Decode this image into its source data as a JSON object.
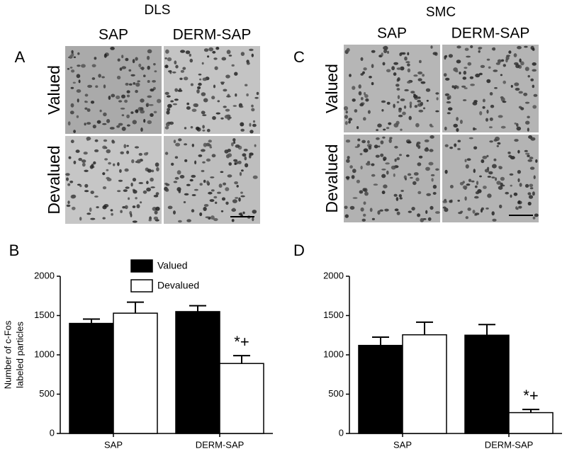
{
  "figure": {
    "panels": [
      {
        "letter": "A",
        "title": "DLS",
        "columns": [
          "SAP",
          "DERM-SAP"
        ],
        "rows": [
          "Valued",
          "Devalued"
        ]
      },
      {
        "letter": "C",
        "title": "SMC",
        "columns": [
          "SAP",
          "DERM-SAP"
        ],
        "rows": [
          "Valued",
          "Devalued"
        ]
      }
    ]
  },
  "chart_data": [
    {
      "type": "bar",
      "panel": "B",
      "categories": [
        "SAP",
        "DERM-SAP"
      ],
      "ylabel": [
        "Number of c-Fos",
        "labeled particles"
      ],
      "series": [
        {
          "name": "Valued",
          "color": "#000000",
          "values": [
            1400,
            1550
          ],
          "errors": [
            55,
            75
          ]
        },
        {
          "name": "Devalued",
          "color": "#ffffff",
          "values": [
            1530,
            890
          ],
          "errors": [
            140,
            100
          ]
        }
      ],
      "annotation": "*+",
      "legend": true,
      "ylim": [
        0,
        2000
      ],
      "yticks": [
        0,
        500,
        1000,
        1500,
        2000
      ]
    },
    {
      "type": "bar",
      "panel": "D",
      "categories": [
        "SAP",
        "DERM-SAP"
      ],
      "series": [
        {
          "color": "#000000",
          "values": [
            1120,
            1250
          ],
          "errors": [
            105,
            135
          ]
        },
        {
          "color": "#ffffff",
          "values": [
            1255,
            265
          ],
          "errors": [
            160,
            40
          ]
        }
      ],
      "annotation": "*+",
      "legend": false,
      "ylim": [
        0,
        2000
      ],
      "yticks": [
        0,
        500,
        1000,
        1500,
        2000
      ]
    }
  ]
}
